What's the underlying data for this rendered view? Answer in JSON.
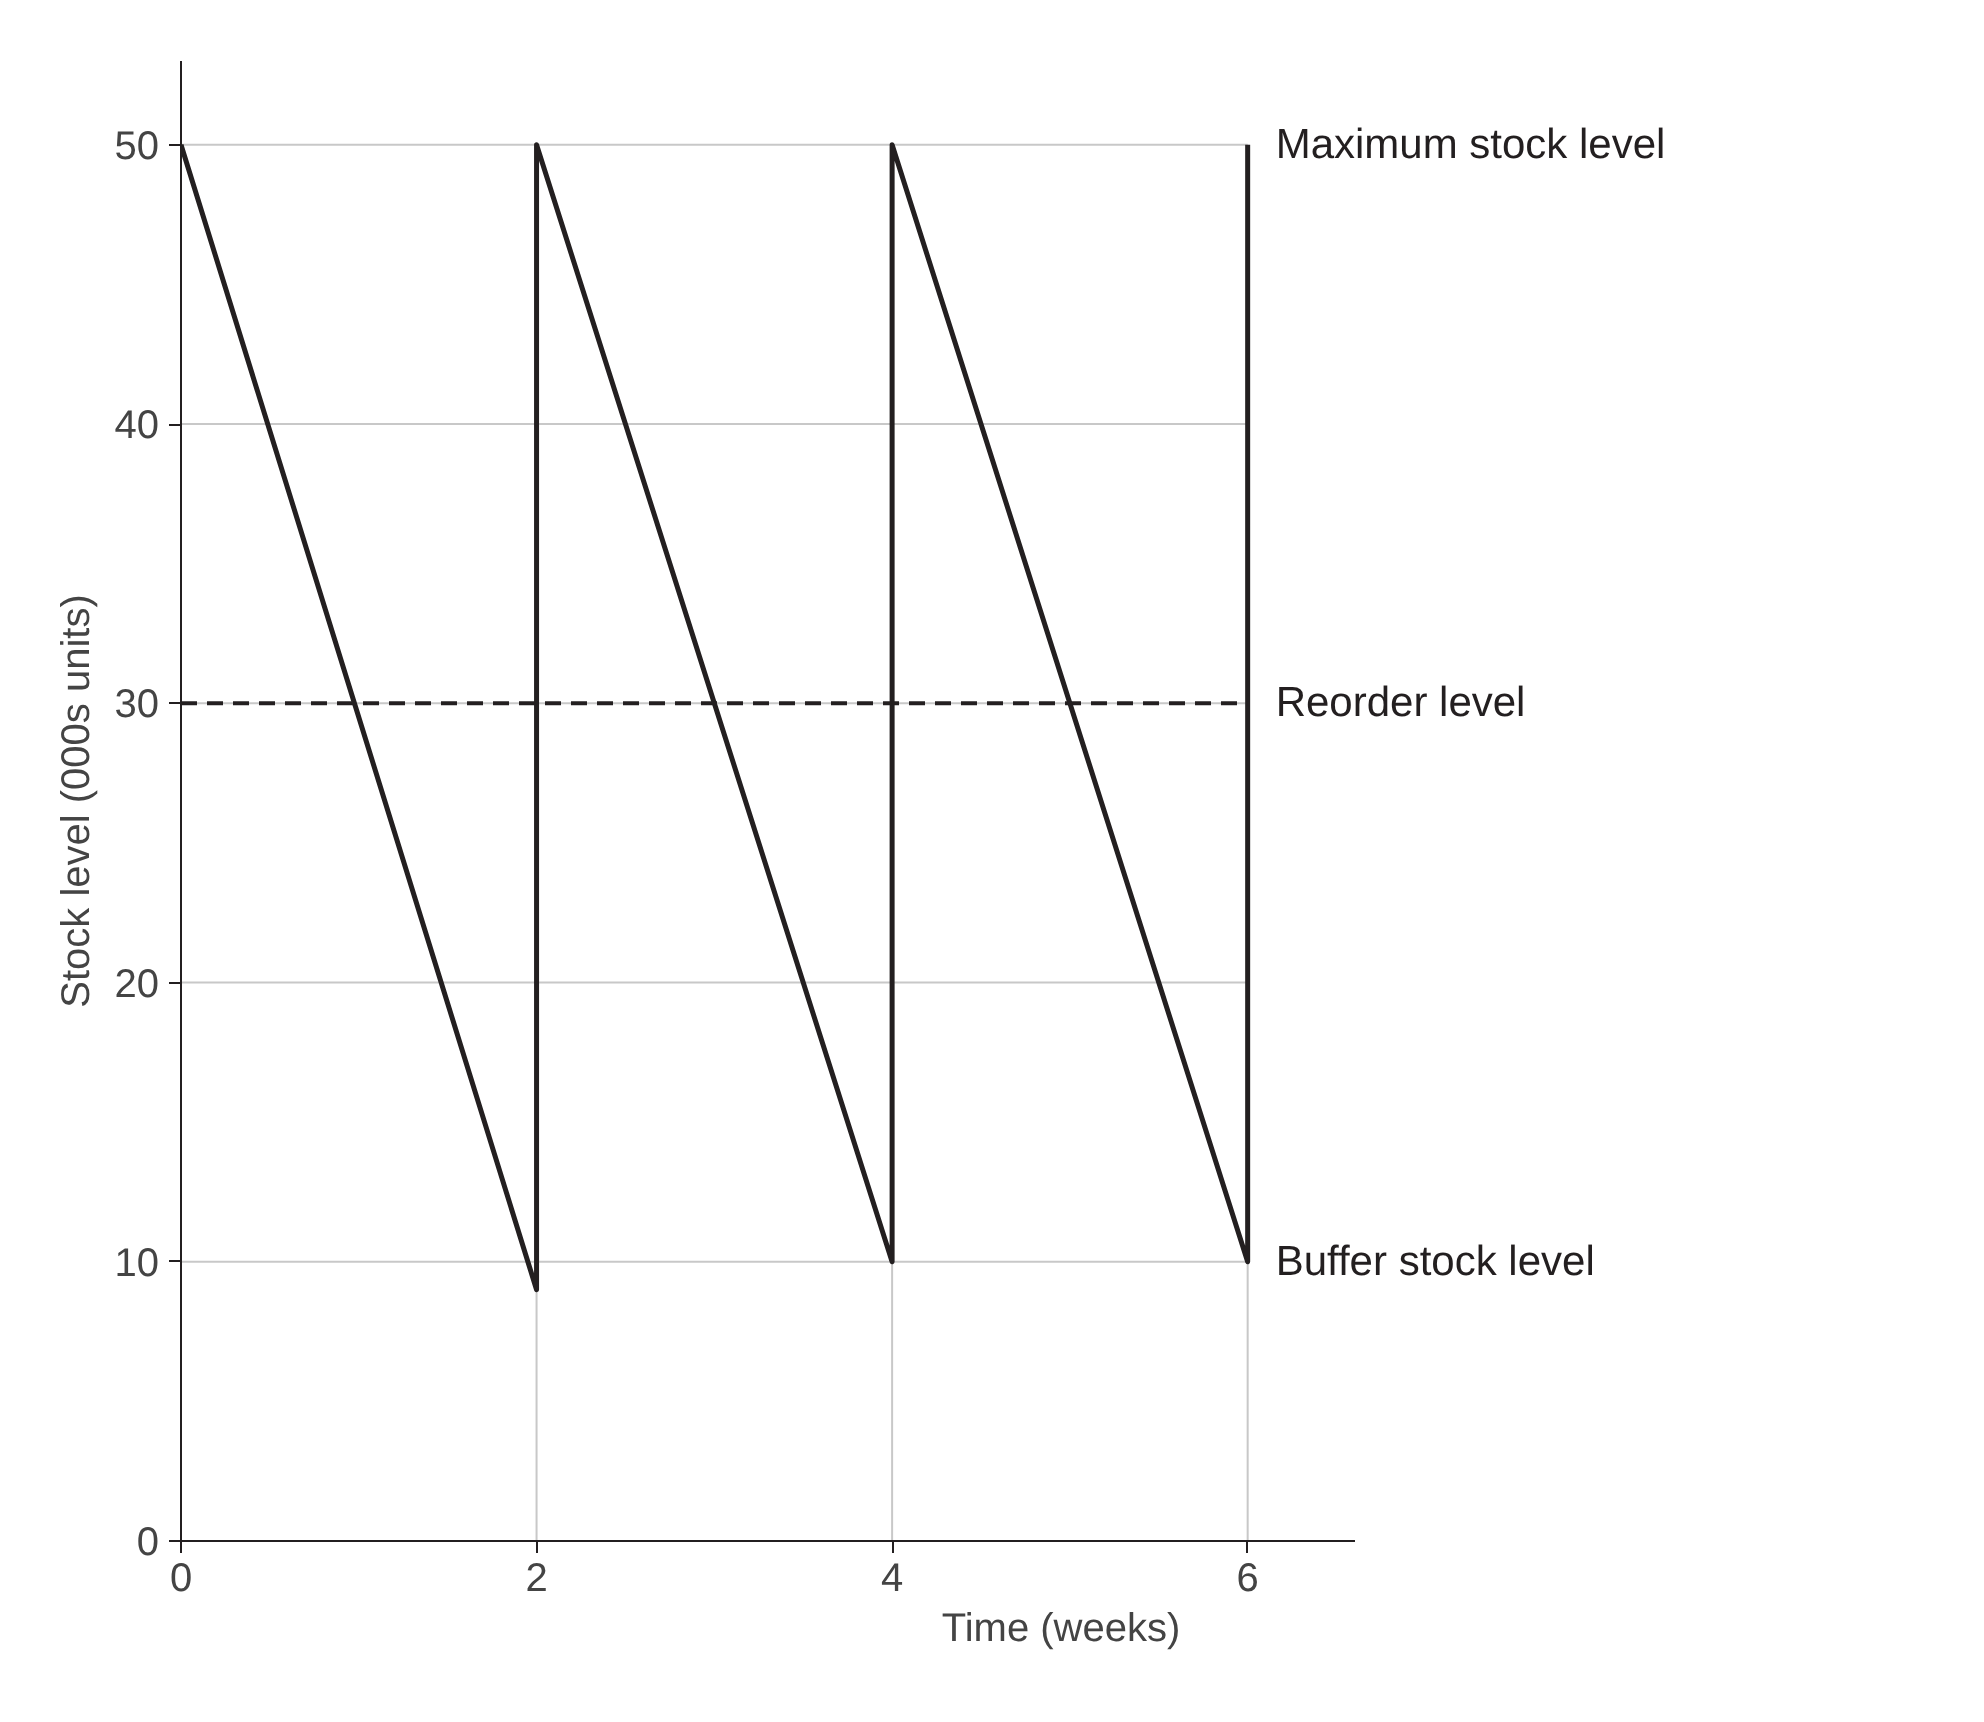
{
  "chart_data": {
    "type": "line",
    "xlabel": "Time (weeks)",
    "ylabel": "Stock level (000s units)",
    "series": [
      {
        "color": "#231f20",
        "x": [
          0,
          2,
          2,
          4,
          4,
          6,
          6
        ],
        "values": [
          50,
          9,
          50,
          10,
          50,
          10,
          50
        ]
      }
    ],
    "xlim": [
      0,
      6.6
    ],
    "ylim": [
      0,
      53
    ],
    "xticks": [
      0,
      2,
      4,
      6
    ],
    "yticks": [
      0,
      10,
      20,
      30,
      40,
      50
    ],
    "grid": true,
    "line_style": "solid",
    "marker": "none",
    "ref_lines": [
      {
        "axis": "y",
        "value": 30,
        "label": "Reorder level",
        "color": "#231f20",
        "line_style": "dashed"
      }
    ],
    "annotations": [
      {
        "text": "Maximum stock level",
        "x": 6,
        "y": 50
      },
      {
        "text": "Buffer stock level",
        "x": 6,
        "y": 10
      }
    ]
  }
}
